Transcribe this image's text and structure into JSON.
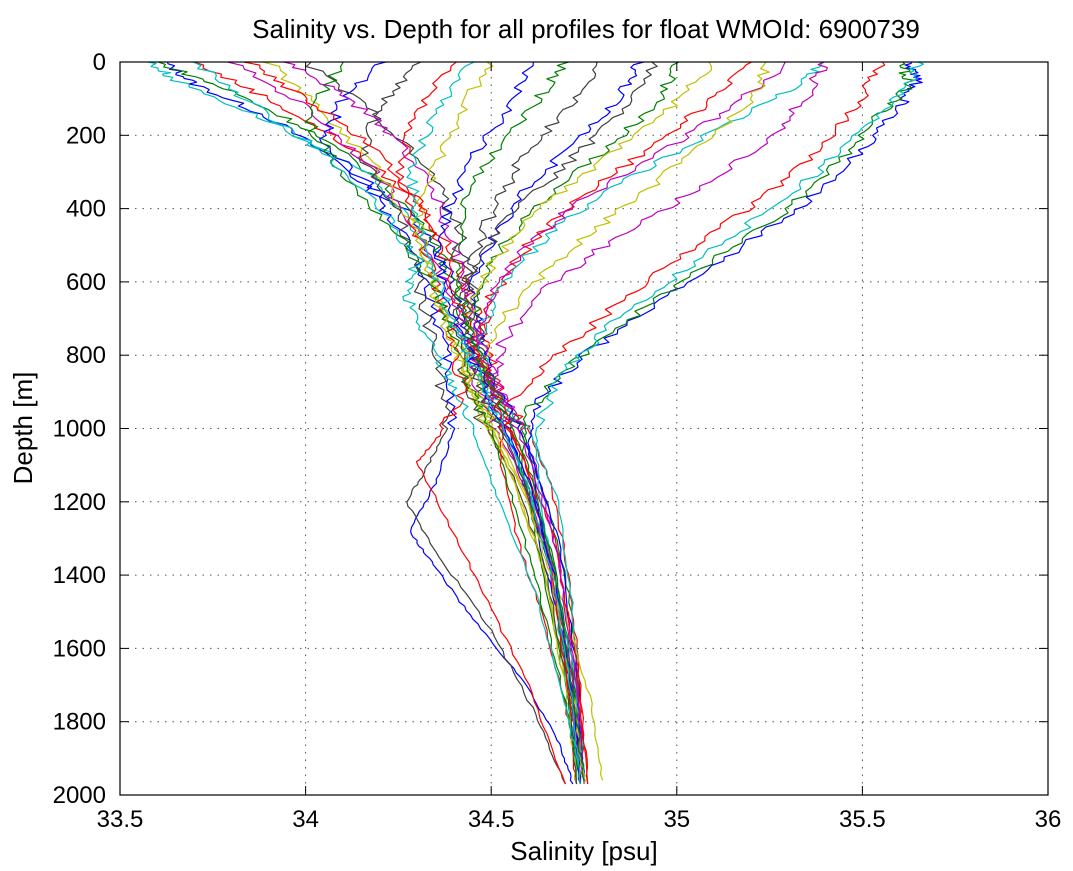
{
  "chart_data": {
    "type": "line",
    "title": "Salinity vs. Depth for all profiles for float WMOId: 6900739",
    "xlabel": "Salinity [psu]",
    "ylabel": "Depth [m]",
    "xlim": [
      33.5,
      36
    ],
    "ylim": [
      0,
      2000
    ],
    "y_reversed": true,
    "grid": true,
    "xticks": [
      33.5,
      34,
      34.5,
      35,
      35.5,
      36
    ],
    "xtick_labels": [
      "33.5",
      "34",
      "34.5",
      "35",
      "35.5",
      "36"
    ],
    "yticks": [
      0,
      200,
      400,
      600,
      800,
      1000,
      1200,
      1400,
      1600,
      1800,
      2000
    ],
    "ytick_labels": [
      "0",
      "200",
      "400",
      "600",
      "800",
      "1000",
      "1200",
      "1400",
      "1600",
      "1800",
      "2000"
    ],
    "colors": [
      "#0000ff",
      "#007f00",
      "#ff0000",
      "#00bfbf",
      "#bf00bf",
      "#bfbf00",
      "#3f3f3f"
    ],
    "series": [
      {
        "color": "#0000ff",
        "x": [
          33.62,
          33.7,
          33.9,
          34.1,
          34.3,
          34.38,
          34.42,
          34.47,
          34.55,
          34.6,
          34.68,
          34.73,
          34.74
        ],
        "y": [
          0,
          60,
          150,
          280,
          430,
          560,
          700,
          820,
          1000,
          1200,
          1500,
          1800,
          1970
        ]
      },
      {
        "color": "#007f00",
        "x": [
          33.6,
          33.8,
          34.0,
          34.2,
          34.35,
          34.4,
          34.45,
          34.5,
          34.58,
          34.65,
          34.71,
          34.74,
          34.75
        ],
        "y": [
          0,
          80,
          180,
          320,
          480,
          620,
          760,
          880,
          1000,
          1200,
          1450,
          1750,
          1960
        ]
      },
      {
        "color": "#ff0000",
        "x": [
          33.7,
          33.9,
          34.1,
          34.3,
          34.4,
          34.45,
          34.5,
          34.53,
          34.6,
          34.66,
          34.71,
          34.74,
          34.76
        ],
        "y": [
          0,
          100,
          220,
          380,
          530,
          660,
          800,
          920,
          1000,
          1150,
          1400,
          1700,
          1970
        ]
      },
      {
        "color": "#00bfbf",
        "x": [
          33.58,
          33.65,
          33.9,
          34.2,
          34.32,
          34.35,
          34.42,
          34.5,
          34.6,
          34.68,
          34.72,
          34.74,
          34.75
        ],
        "y": [
          0,
          50,
          160,
          330,
          500,
          640,
          780,
          900,
          1000,
          1200,
          1500,
          1800,
          1960
        ]
      },
      {
        "color": "#bf00bf",
        "x": [
          33.8,
          34.0,
          34.15,
          34.28,
          34.36,
          34.42,
          34.48,
          34.56,
          34.62,
          34.68,
          34.73,
          34.75
        ],
        "y": [
          0,
          120,
          260,
          420,
          580,
          720,
          850,
          960,
          1100,
          1350,
          1700,
          1960
        ]
      },
      {
        "color": "#bfbf00",
        "x": [
          33.9,
          34.05,
          34.2,
          34.3,
          34.35,
          34.4,
          34.44,
          34.5,
          34.6,
          34.7,
          34.77,
          34.8
        ],
        "y": [
          0,
          140,
          300,
          460,
          620,
          760,
          880,
          1000,
          1200,
          1500,
          1750,
          1960
        ]
      },
      {
        "color": "#3f3f3f",
        "x": [
          34.0,
          34.2,
          34.35,
          34.42,
          34.45,
          34.47,
          34.5,
          34.55,
          34.62,
          34.68,
          34.73,
          34.75
        ],
        "y": [
          0,
          150,
          320,
          480,
          620,
          760,
          900,
          1000,
          1200,
          1450,
          1750,
          1970
        ]
      },
      {
        "color": "#0000ff",
        "x": [
          34.9,
          34.85,
          34.75,
          34.6,
          34.5,
          34.45,
          34.47,
          34.52,
          34.6,
          34.68,
          34.73,
          34.75
        ],
        "y": [
          0,
          90,
          200,
          340,
          480,
          620,
          760,
          900,
          1050,
          1300,
          1650,
          1960
        ]
      },
      {
        "color": "#007f00",
        "x": [
          35.0,
          34.95,
          34.82,
          34.65,
          34.52,
          34.46,
          34.45,
          34.48,
          34.57,
          34.66,
          34.72,
          34.74
        ],
        "y": [
          0,
          110,
          230,
          370,
          510,
          650,
          790,
          920,
          1080,
          1330,
          1650,
          1960
        ]
      },
      {
        "color": "#ff0000",
        "x": [
          35.2,
          35.1,
          34.95,
          34.75,
          34.6,
          34.5,
          34.46,
          34.5,
          34.58,
          34.67,
          34.73,
          34.76
        ],
        "y": [
          0,
          100,
          220,
          360,
          500,
          640,
          780,
          920,
          1060,
          1300,
          1650,
          1970
        ]
      },
      {
        "color": "#00bfbf",
        "x": [
          35.4,
          35.3,
          35.1,
          34.85,
          34.65,
          34.53,
          34.47,
          34.48,
          34.56,
          34.65,
          34.72,
          34.75
        ],
        "y": [
          0,
          80,
          190,
          330,
          470,
          610,
          750,
          900,
          1050,
          1300,
          1650,
          1960
        ]
      },
      {
        "color": "#bf00bf",
        "x": [
          35.3,
          35.15,
          34.95,
          34.72,
          34.57,
          34.48,
          34.45,
          34.48,
          34.57,
          34.66,
          34.72,
          34.74
        ],
        "y": [
          0,
          120,
          250,
          390,
          530,
          670,
          810,
          950,
          1100,
          1350,
          1700,
          1960
        ]
      },
      {
        "color": "#bfbf00",
        "x": [
          35.1,
          34.98,
          34.8,
          34.62,
          34.5,
          34.44,
          34.43,
          34.47,
          34.55,
          34.64,
          34.71,
          34.73
        ],
        "y": [
          0,
          130,
          270,
          410,
          550,
          690,
          830,
          960,
          1120,
          1380,
          1720,
          1960
        ]
      },
      {
        "color": "#3f3f3f",
        "x": [
          34.95,
          34.85,
          34.7,
          34.55,
          34.45,
          34.4,
          34.42,
          34.47,
          34.56,
          34.65,
          34.71,
          34.74
        ],
        "y": [
          0,
          140,
          280,
          420,
          560,
          700,
          840,
          970,
          1130,
          1400,
          1730,
          1970
        ]
      },
      {
        "color": "#0000ff",
        "x": [
          35.62,
          35.65,
          35.6,
          35.5,
          35.35,
          35.15,
          34.95,
          34.75,
          34.62,
          34.6,
          34.64,
          34.7,
          34.74,
          34.75
        ],
        "y": [
          0,
          50,
          120,
          240,
          380,
          520,
          660,
          800,
          930,
          1050,
          1300,
          1600,
          1850,
          1970
        ]
      },
      {
        "color": "#007f00",
        "x": [
          35.6,
          35.63,
          35.55,
          35.45,
          35.3,
          35.1,
          34.9,
          34.72,
          34.6,
          34.58,
          34.63,
          34.7,
          34.74
        ],
        "y": [
          0,
          60,
          140,
          260,
          400,
          540,
          680,
          820,
          950,
          1100,
          1350,
          1700,
          1960
        ]
      },
      {
        "color": "#ff0000",
        "x": [
          35.55,
          35.5,
          35.4,
          35.25,
          35.05,
          34.85,
          34.68,
          34.55,
          34.52,
          34.57,
          34.65,
          34.71,
          34.73
        ],
        "y": [
          0,
          100,
          220,
          360,
          500,
          650,
          800,
          930,
          1060,
          1300,
          1550,
          1800,
          1970
        ]
      },
      {
        "color": "#00bfbf",
        "x": [
          35.65,
          35.62,
          35.52,
          35.38,
          35.2,
          35.0,
          34.82,
          34.68,
          34.62,
          34.63,
          34.67,
          34.71,
          34.73
        ],
        "y": [
          0,
          70,
          170,
          300,
          440,
          580,
          720,
          860,
          1000,
          1200,
          1450,
          1750,
          1960
        ]
      },
      {
        "color": "#bf00bf",
        "x": [
          35.4,
          35.35,
          35.25,
          35.05,
          34.82,
          34.63,
          34.53,
          34.5,
          34.55,
          34.64,
          34.71,
          34.74
        ],
        "y": [
          0,
          90,
          210,
          350,
          490,
          630,
          770,
          900,
          1050,
          1300,
          1650,
          1960
        ]
      },
      {
        "color": "#bfbf00",
        "x": [
          35.25,
          35.2,
          35.05,
          34.88,
          34.7,
          34.56,
          34.48,
          34.47,
          34.54,
          34.63,
          34.7,
          34.73
        ],
        "y": [
          0,
          110,
          240,
          380,
          520,
          660,
          800,
          930,
          1090,
          1340,
          1700,
          1970
        ]
      },
      {
        "color": "#3f3f3f",
        "x": [
          34.8,
          34.7,
          34.58,
          34.5,
          34.45,
          34.43,
          34.45,
          34.5,
          34.58,
          34.66,
          34.71,
          34.73
        ],
        "y": [
          0,
          130,
          270,
          410,
          550,
          690,
          830,
          960,
          1120,
          1380,
          1720,
          1970
        ]
      },
      {
        "color": "#0000ff",
        "x": [
          34.2,
          34.1,
          34.05,
          34.2,
          34.3,
          34.35,
          34.38,
          34.4,
          34.35,
          34.28,
          34.35,
          34.45,
          34.58,
          34.68,
          34.72
        ],
        "y": [
          0,
          100,
          220,
          380,
          530,
          680,
          820,
          1000,
          1150,
          1280,
          1380,
          1520,
          1680,
          1850,
          1970
        ]
      },
      {
        "color": "#3f3f3f",
        "x": [
          34.3,
          34.2,
          34.15,
          34.25,
          34.3,
          34.33,
          34.36,
          34.38,
          34.32,
          34.27,
          34.36,
          34.5,
          34.62,
          34.7
        ],
        "y": [
          0,
          120,
          260,
          420,
          580,
          720,
          860,
          1000,
          1120,
          1200,
          1350,
          1550,
          1780,
          1970
        ]
      },
      {
        "color": "#ff0000",
        "x": [
          34.4,
          34.3,
          34.25,
          34.3,
          34.35,
          34.4,
          34.42,
          34.36,
          34.3,
          34.38,
          34.48,
          34.6,
          34.7
        ],
        "y": [
          0,
          140,
          300,
          460,
          620,
          760,
          900,
          1020,
          1090,
          1250,
          1450,
          1700,
          1970
        ]
      },
      {
        "color": "#007f00",
        "x": [
          34.1,
          34.0,
          34.1,
          34.25,
          34.35,
          34.4,
          34.45,
          34.5,
          34.56,
          34.63,
          34.7,
          34.74
        ],
        "y": [
          0,
          150,
          310,
          470,
          620,
          760,
          900,
          1000,
          1200,
          1450,
          1750,
          1970
        ]
      },
      {
        "color": "#00bfbf",
        "x": [
          33.7,
          33.85,
          34.05,
          34.2,
          34.3,
          34.27,
          34.33,
          34.4,
          34.45,
          34.52,
          34.62,
          34.7,
          34.74
        ],
        "y": [
          0,
          110,
          250,
          400,
          540,
          640,
          760,
          880,
          1000,
          1200,
          1450,
          1750,
          1960
        ]
      },
      {
        "color": "#bf00bf",
        "x": [
          33.95,
          34.1,
          34.25,
          34.35,
          34.4,
          34.44,
          34.48,
          34.54,
          34.61,
          34.68,
          34.73,
          34.75
        ],
        "y": [
          0,
          90,
          210,
          360,
          510,
          660,
          800,
          930,
          1100,
          1350,
          1700,
          1970
        ]
      },
      {
        "color": "#bfbf00",
        "x": [
          34.5,
          34.42,
          34.35,
          34.3,
          34.33,
          34.38,
          34.44,
          34.5,
          34.58,
          34.66,
          34.72,
          34.75
        ],
        "y": [
          0,
          130,
          280,
          430,
          580,
          720,
          860,
          980,
          1150,
          1400,
          1720,
          1970
        ]
      },
      {
        "color": "#ff0000",
        "x": [
          33.85,
          34.0,
          34.18,
          34.3,
          34.37,
          34.42,
          34.47,
          34.53,
          34.6,
          34.66,
          34.71,
          34.74
        ],
        "y": [
          0,
          100,
          230,
          380,
          530,
          680,
          820,
          950,
          1120,
          1380,
          1720,
          1970
        ]
      },
      {
        "color": "#0000ff",
        "x": [
          34.6,
          34.55,
          34.45,
          34.38,
          34.36,
          34.4,
          34.46,
          34.52,
          34.6,
          34.67,
          34.72,
          34.74
        ],
        "y": [
          0,
          120,
          260,
          410,
          560,
          700,
          840,
          970,
          1140,
          1400,
          1730,
          1970
        ]
      },
      {
        "color": "#007f00",
        "x": [
          34.7,
          34.62,
          34.5,
          34.42,
          34.4,
          34.43,
          34.48,
          34.54,
          34.61,
          34.67,
          34.72,
          34.75
        ],
        "y": [
          0,
          110,
          250,
          400,
          550,
          690,
          830,
          960,
          1130,
          1390,
          1720,
          1960
        ]
      },
      {
        "color": "#00bfbf",
        "x": [
          34.45,
          34.35,
          34.28,
          34.3,
          34.35,
          34.41,
          34.47,
          34.53,
          34.6,
          34.67,
          34.72,
          34.74
        ],
        "y": [
          0,
          140,
          290,
          440,
          590,
          730,
          870,
          990,
          1160,
          1420,
          1740,
          1970
        ]
      }
    ]
  }
}
